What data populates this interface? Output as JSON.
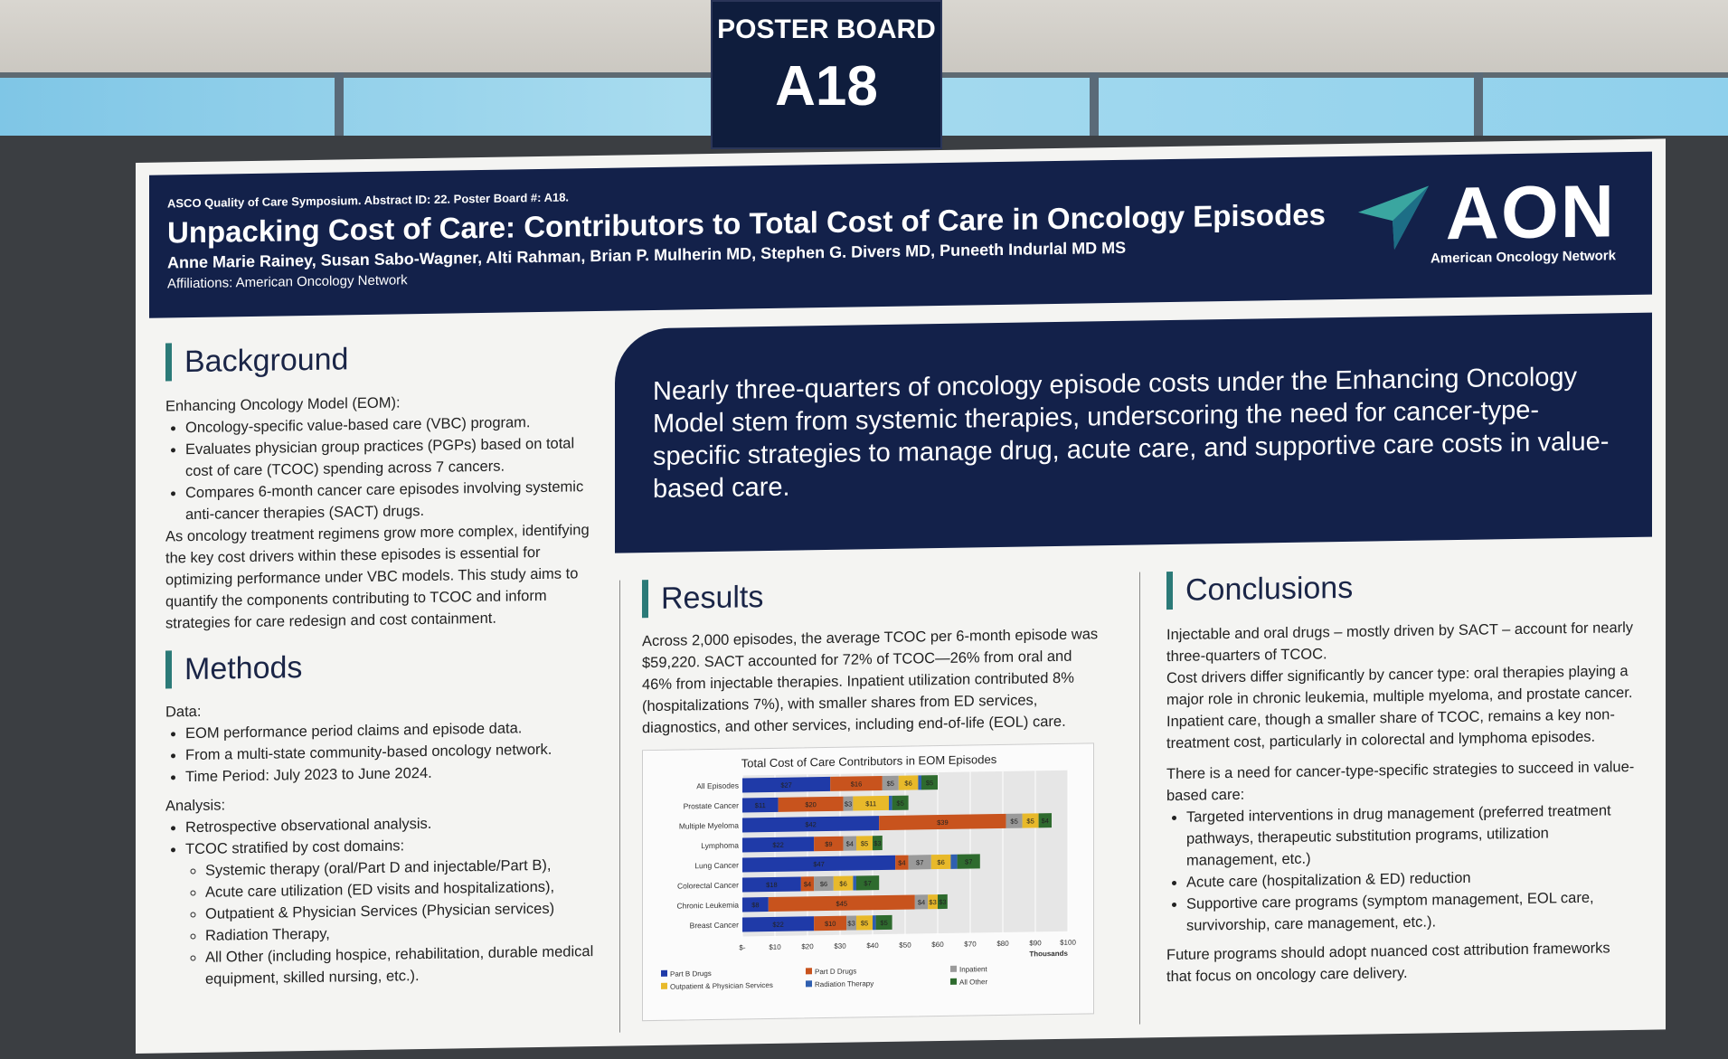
{
  "sign": {
    "line1": "POSTER BOARD",
    "line2": "A18"
  },
  "header": {
    "conference": "ASCO Quality of Care Symposium. Abstract ID: 22. Poster Board #: A18.",
    "title": "Unpacking Cost of Care: Contributors to Total Cost of Care in Oncology Episodes",
    "authors": "Anne Marie Rainey, Susan Sabo-Wagner, Alti Rahman, Brian P. Mulherin MD, Stephen G. Divers MD, Puneeth Indurlal MD MS",
    "affiliations": "Affiliations: American Oncology Network",
    "logo_text": "AON",
    "logo_sub": "American Oncology Network"
  },
  "key_message": "Nearly three-quarters of oncology episode costs under the Enhancing Oncology Model stem from systemic therapies, underscoring the need for cancer-type-specific strategies to manage drug, acute care, and supportive care costs in value-based care.",
  "background": {
    "heading": "Background",
    "intro": "Enhancing Oncology Model (EOM):",
    "bullets": [
      "Oncology-specific value-based care (VBC) program.",
      "Evaluates physician group practices (PGPs) based on total cost of care (TCOC) spending across 7 cancers.",
      "Compares 6-month cancer care episodes involving systemic anti-cancer therapies (SACT) drugs."
    ],
    "paragraph": "As oncology treatment regimens grow more complex, identifying the key cost drivers within these episodes is essential for optimizing performance under VBC models. This study aims to quantify the components contributing to TCOC and inform strategies for care redesign and cost containment."
  },
  "methods": {
    "heading": "Methods",
    "data_label": "Data:",
    "data_bullets": [
      "EOM performance period claims and episode data.",
      "From a multi-state community-based oncology network.",
      "Time Period: July 2023 to June 2024."
    ],
    "analysis_label": "Analysis:",
    "analysis_bullets": [
      "Retrospective observational analysis.",
      "TCOC stratified by cost domains:"
    ],
    "domains": [
      "Systemic therapy (oral/Part D and injectable/Part B),",
      "Acute care utilization (ED visits and hospitalizations),",
      "Outpatient & Physician Services (Physician services)",
      "Radiation Therapy,",
      "All Other (including hospice, rehabilitation, durable medical equipment, skilled nursing, etc.)."
    ]
  },
  "results": {
    "heading": "Results",
    "text": "Across 2,000 episodes, the average TCOC per 6-month episode was $59,220. SACT accounted for 72% of TCOC—26% from oral and 46% from injectable therapies. Inpatient utilization contributed 8% (hospitalizations 7%), with smaller shares from ED services, diagnostics, and other services, including end-of-life (EOL) care."
  },
  "conclusions": {
    "heading": "Conclusions",
    "p1": "Injectable and oral drugs – mostly driven by SACT – account for nearly three-quarters of TCOC.",
    "p2": "Cost drivers differ significantly by cancer type: oral therapies playing a major role in chronic leukemia, multiple myeloma, and prostate cancer. Inpatient care, though a smaller share of TCOC, remains a key non-treatment cost, particularly in colorectal and lymphoma episodes.",
    "p3": "There is a need for cancer-type-specific strategies to succeed in value-based care:",
    "bullets": [
      "Targeted interventions in drug management (preferred treatment pathways, therapeutic substitution programs, utilization management, etc.)",
      "Acute care (hospitalization & ED) reduction",
      "Supportive care programs (symptom management, EOL care, survivorship, care management, etc.)."
    ],
    "p4": "Future programs should adopt nuanced cost attribution frameworks that focus on oncology care delivery."
  },
  "chart_data": {
    "type": "bar",
    "orientation": "horizontal",
    "stacked": true,
    "title": "Total Cost of Care Contributors in EOM Episodes",
    "xlabel": "Thousands",
    "xlim": [
      0,
      100
    ],
    "xticks": [
      "$-",
      "$10",
      "$20",
      "$30",
      "$40",
      "$50",
      "$60",
      "$70",
      "$80",
      "$90",
      "$100"
    ],
    "grid": true,
    "legend": "bottom",
    "categories": [
      "All Episodes",
      "Prostate Cancer",
      "Multiple Myeloma",
      "Lymphoma",
      "Lung Cancer",
      "Colorectal Cancer",
      "Chronic Leukemia",
      "Breast Cancer"
    ],
    "series": [
      {
        "name": "Part B Drugs",
        "color": "#1f3aa8",
        "values": [
          27,
          11,
          42,
          22,
          47,
          18,
          8,
          22
        ]
      },
      {
        "name": "Part D Drugs",
        "color": "#c8531d",
        "values": [
          16,
          20,
          39,
          9,
          4,
          4,
          45,
          10
        ]
      },
      {
        "name": "Inpatient",
        "color": "#9a9a9a",
        "values": [
          5,
          3,
          5,
          4,
          7,
          6,
          4,
          3
        ]
      },
      {
        "name": "Outpatient & Physician Services",
        "color": "#e8b92a",
        "values": [
          6,
          11,
          5,
          5,
          6,
          6,
          3,
          5
        ]
      },
      {
        "name": "Radiation Therapy",
        "color": "#2f5fb0",
        "values": [
          1,
          1,
          0,
          0,
          2,
          1,
          0,
          1
        ]
      },
      {
        "name": "All Other",
        "color": "#2e6b2e",
        "values": [
          5,
          5,
          4,
          3,
          7,
          7,
          3,
          5
        ]
      }
    ]
  }
}
